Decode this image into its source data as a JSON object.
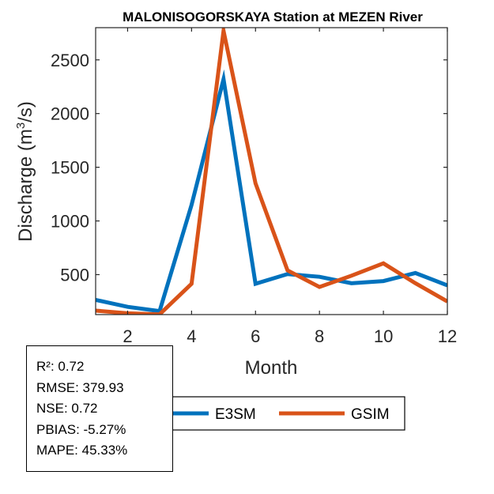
{
  "chart_data": {
    "type": "line",
    "title": "MALONISOGORSKAYA  Station at  MEZEN  River",
    "xlabel": "Month",
    "ylabel_main": "Discharge (m",
    "ylabel_sup": "3",
    "ylabel_tail": "/s)",
    "xlim": [
      1,
      12
    ],
    "ylim": [
      128,
      2800
    ],
    "xticks": [
      2,
      4,
      6,
      8,
      10,
      12
    ],
    "yticks": [
      500,
      1000,
      1500,
      2000,
      2500
    ],
    "x": [
      1,
      2,
      3,
      4,
      5,
      6,
      7,
      8,
      9,
      10,
      11,
      12
    ],
    "series": [
      {
        "name": "E3SM",
        "color": "#0072BD",
        "values": [
          265,
          200,
          160,
          1150,
          2320,
          415,
          505,
          480,
          420,
          440,
          515,
          400
        ]
      },
      {
        "name": "GSIM",
        "color": "#D95319",
        "values": [
          165,
          140,
          130,
          415,
          2770,
          1350,
          540,
          385,
          490,
          605,
          420,
          250
        ]
      }
    ],
    "legend": [
      "E3SM",
      "GSIM"
    ]
  },
  "stats": {
    "r2": "R²: 0.72",
    "rmse": "RMSE: 379.93",
    "nse": "NSE: 0.72",
    "pbias": "PBIAS: -5.27%",
    "mape": "MAPE: 45.33%"
  }
}
